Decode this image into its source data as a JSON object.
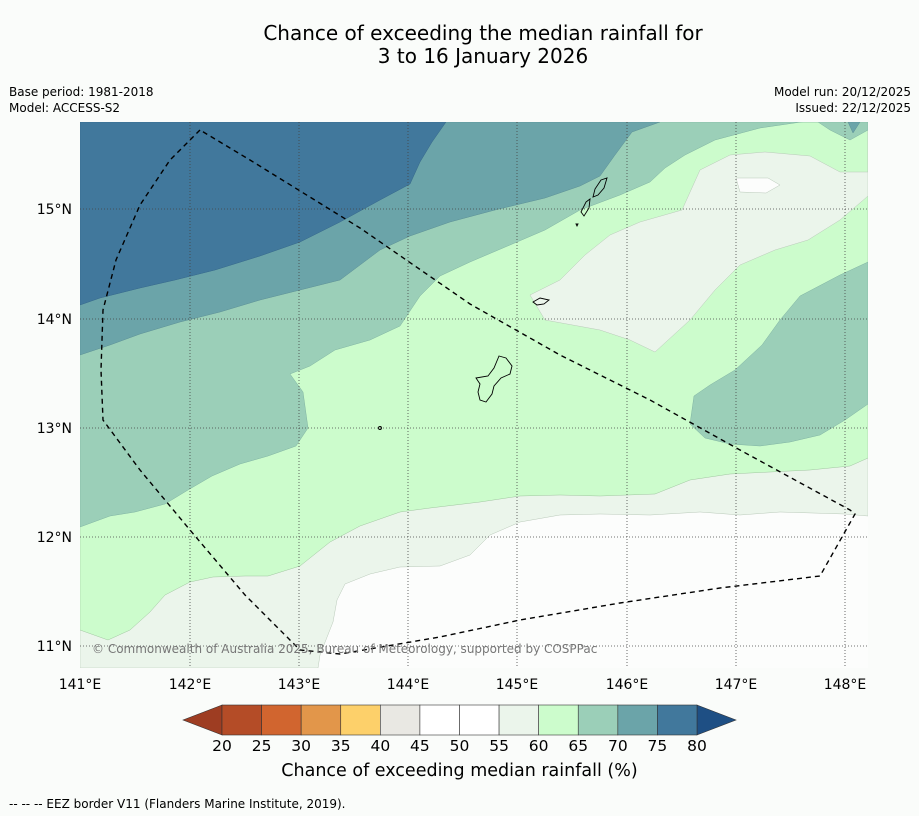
{
  "title": {
    "line1": "Chance of exceeding the median rainfall for",
    "line2": "3 to 16 January 2026"
  },
  "meta": {
    "base_period": "Base period: 1981-2018",
    "model": "Model: ACCESS-S2",
    "model_run": "Model run: 20/12/2025",
    "issued": "Issued: 22/12/2025"
  },
  "map": {
    "lon_labels": [
      "141°E",
      "142°E",
      "143°E",
      "144°E",
      "145°E",
      "146°E",
      "147°E",
      "148°E"
    ],
    "lat_labels": [
      "15°N",
      "14°N",
      "13°N",
      "12°N",
      "11°N"
    ],
    "copyright": "© Commonwealth of Australia 2025, Bureau of Meteorology, supported by COSPPac",
    "region_colors": {
      "band_80": "#41789c",
      "band_75": "#6ba4a9",
      "band_70": "#9bcfb8",
      "band_65": "#ccfccc",
      "band_60": "#ebf5eb",
      "band_55": "#fcfdfc"
    }
  },
  "colorbar": {
    "tick_labels": [
      "20",
      "25",
      "30",
      "35",
      "40",
      "45",
      "50",
      "55",
      "60",
      "65",
      "70",
      "75",
      "80"
    ],
    "under_color": "#9e3d22",
    "over_color": "#1e4f84",
    "colors": [
      "#b44c27",
      "#d1652f",
      "#e2964a",
      "#fdd06a",
      "#e9e8e3",
      "#ffffff",
      "#ffffff",
      "#ebf5eb",
      "#ccfccc",
      "#9bcfb8",
      "#6ba4a9",
      "#41789c"
    ],
    "title": "Chance of exceeding median rainfall (%)"
  },
  "footnote": "-- -- -- EEZ border V11 (Flanders Marine Institute, 2019)."
}
